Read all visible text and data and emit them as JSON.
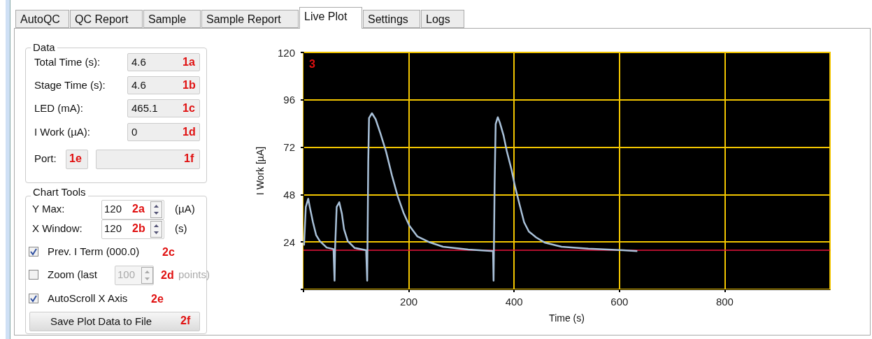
{
  "chart_data": [
    {
      "type": "other",
      "annotations": [
        "AutoQC",
        "QC Report",
        "Sample",
        "Sample Report",
        "Live Plot",
        "Settings",
        "Logs",
        "Data",
        "Total Time (s):",
        "4.6",
        "1a",
        "Stage Time (s):",
        "4.6",
        "1b",
        "LED (mA):",
        "465.1",
        "1c",
        "I Work (µA):",
        "0",
        "1d",
        "Port:",
        "1e",
        "1f",
        "Chart Tools",
        "Y Max:",
        "120",
        "2a",
        "(µA)",
        "X Window:",
        "120",
        "2b",
        "(s)",
        "Prev. I Term (000.0)",
        "2c",
        "Zoom (last",
        "100",
        "2d",
        "points)",
        "AutoScroll X Axis",
        "2e",
        "Save Plot Data to File",
        "2f"
      ]
    },
    {
      "type": "line",
      "xlabel": "Time (s)",
      "ylabel": "I Work [µA]",
      "annotations": [
        "3"
      ],
      "xlim": [
        0,
        1000
      ],
      "xticks": [
        {
          "value": 0,
          "label": null
        },
        200,
        400,
        600,
        800
      ],
      "ylim": [
        0,
        120
      ],
      "yticks": [
        {
          "value": 0,
          "label": null
        },
        24,
        48,
        72,
        96,
        120
      ],
      "grid": true,
      "marker": "none",
      "ref_lines": [
        {
          "axis": "y",
          "value": 20,
          "color": "#e8143c"
        }
      ],
      "series": [
        {
          "color": "#a9c1d9",
          "x": [
            1,
            4.4,
            9,
            12,
            18,
            24,
            31,
            44,
            57,
            59,
            60,
            63,
            68,
            73,
            77,
            84,
            97,
            119,
            121,
            123,
            124.5,
            130,
            137,
            146,
            157,
            168,
            179,
            190,
            201,
            216,
            238,
            265,
            313,
            360,
            361,
            363,
            365,
            369,
            373,
            380,
            386,
            395,
            402,
            411,
            419,
            428,
            442,
            459,
            490,
            541,
            607,
            634
          ],
          "values": [
            22.2,
            41.7,
            45.9,
            41.7,
            34,
            27.5,
            24.5,
            21.2,
            20.4,
            4.4,
            20.4,
            41.7,
            44.1,
            38.2,
            30.5,
            24.5,
            21,
            19.8,
            4.4,
            64.3,
            86.8,
            89.2,
            86.2,
            79.1,
            69.6,
            57.7,
            47.1,
            38.8,
            32.3,
            26.9,
            24,
            21.6,
            20.2,
            19.4,
            4.4,
            53.6,
            83.8,
            87.2,
            84.4,
            77.9,
            70.2,
            60.7,
            51.8,
            42.3,
            34,
            29.3,
            26.3,
            23.6,
            21.6,
            20.6,
            19.8,
            19.4
          ]
        }
      ]
    }
  ]
}
